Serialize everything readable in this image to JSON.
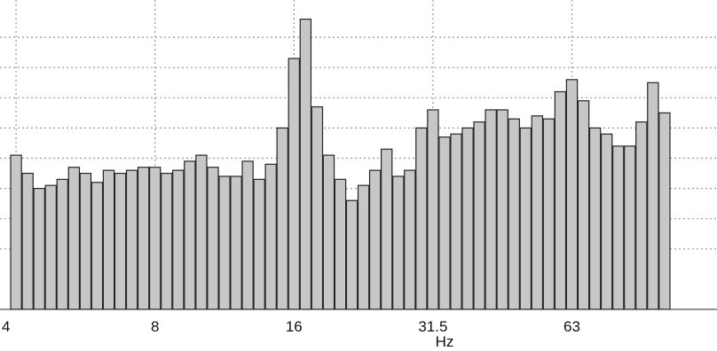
{
  "chart_data": {
    "type": "bar",
    "xlabel": "Hz",
    "ylabel": "",
    "title": "",
    "grid": true,
    "ylim": [
      0,
      100
    ],
    "tick_labels": [
      {
        "label": "4",
        "bar_index": 0
      },
      {
        "label": "8",
        "bar_index": 12
      },
      {
        "label": "16",
        "bar_index": 24
      },
      {
        "label": "31.5",
        "bar_index": 36
      },
      {
        "label": "63",
        "bar_index": 48
      }
    ],
    "values": [
      51,
      45,
      40,
      41,
      43,
      47,
      45,
      42,
      46,
      45,
      46,
      47,
      47,
      45,
      46,
      49,
      51,
      47,
      44,
      44,
      49,
      43,
      48,
      60,
      83,
      96,
      67,
      51,
      43,
      36,
      41,
      46,
      53,
      44,
      46,
      60,
      66,
      57,
      58,
      60,
      62,
      66,
      66,
      63,
      60,
      64,
      63,
      72,
      76,
      69,
      60,
      58,
      54,
      54,
      62,
      75,
      65
    ]
  }
}
